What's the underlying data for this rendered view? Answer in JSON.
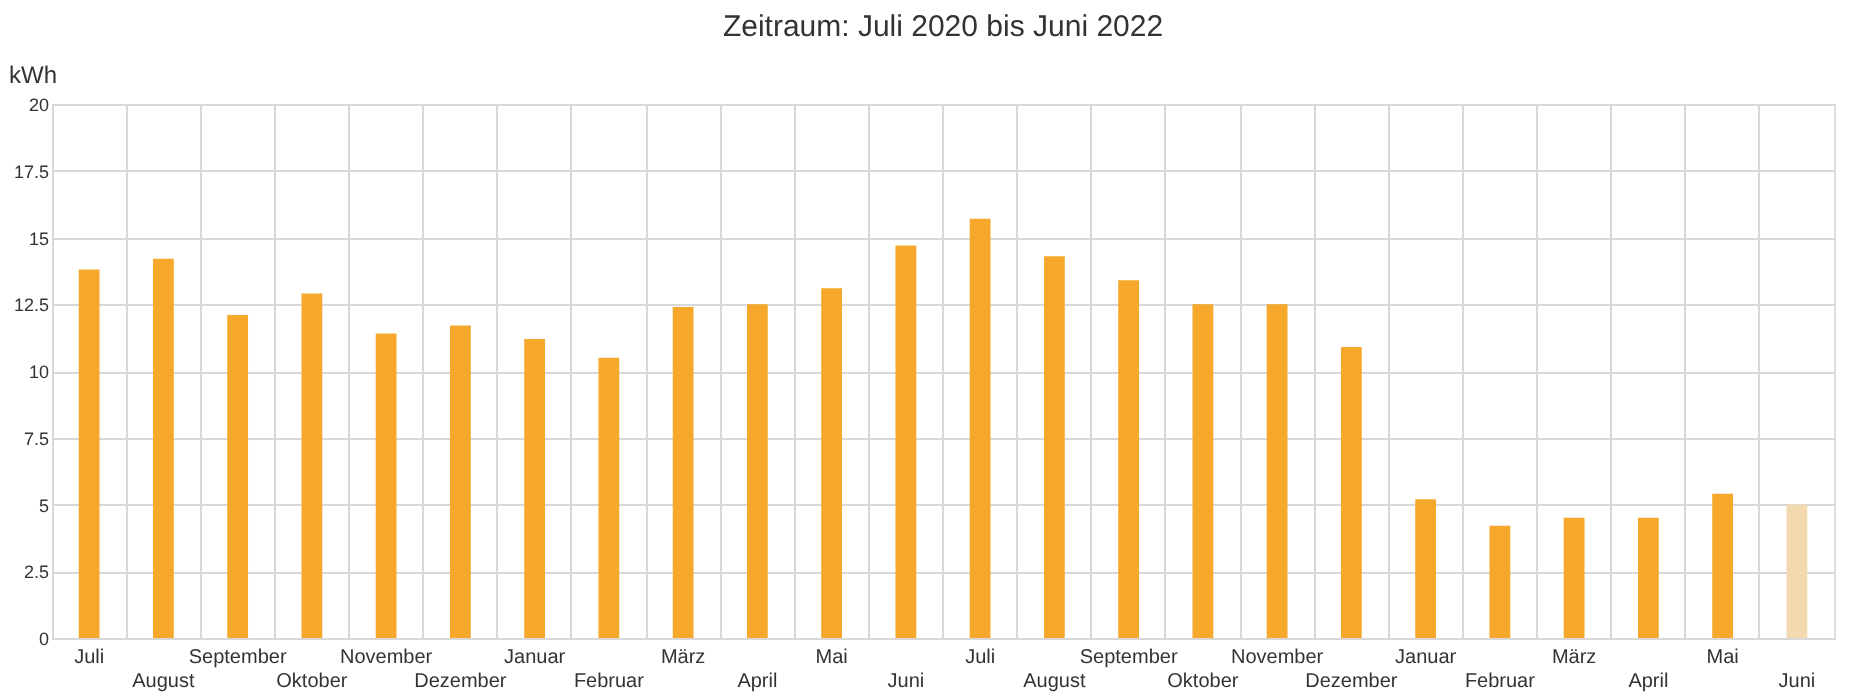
{
  "chart_data": {
    "type": "bar",
    "title": "Zeitraum: Juli 2020 bis Juni 2022",
    "ylabel": "kWh",
    "categories": [
      "Juli",
      "August",
      "September",
      "Oktober",
      "November",
      "Dezember",
      "Januar",
      "Februar",
      "März",
      "April",
      "Mai",
      "Juni",
      "Juli",
      "August",
      "September",
      "Oktober",
      "November",
      "Dezember",
      "Januar",
      "Februar",
      "März",
      "April",
      "Mai",
      "Juni"
    ],
    "values": [
      13.8,
      14.2,
      12.1,
      12.9,
      11.4,
      11.7,
      11.2,
      10.5,
      12.4,
      12.5,
      13.1,
      14.7,
      15.7,
      14.3,
      13.4,
      12.5,
      12.5,
      10.9,
      5.2,
      4.2,
      4.5,
      4.5,
      5.4,
      5.0
    ],
    "colors": [
      "#f5a82c",
      "#f5a82c",
      "#f5a82c",
      "#f5a82c",
      "#f5a82c",
      "#f5a82c",
      "#f5a82c",
      "#f5a82c",
      "#f5a82c",
      "#f5a82c",
      "#f5a82c",
      "#f5a82c",
      "#f5a82c",
      "#f5a82c",
      "#f5a82c",
      "#f5a82c",
      "#f5a82c",
      "#f5a82c",
      "#f5a82c",
      "#f5a82c",
      "#f5a82c",
      "#f5a82c",
      "#f5a82c",
      "#f2d9b0"
    ],
    "ylim": [
      0,
      20
    ],
    "yticks": [
      0,
      2.5,
      5,
      7.5,
      10,
      12.5,
      15,
      17.5,
      20
    ],
    "grid": true
  }
}
